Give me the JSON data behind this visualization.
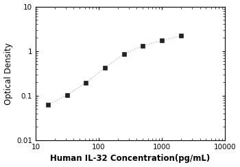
{
  "x_data": [
    15.625,
    31.25,
    62.5,
    125,
    250,
    500,
    1000,
    2000
  ],
  "y_data": [
    0.062,
    0.103,
    0.196,
    0.42,
    0.86,
    1.32,
    1.72,
    2.2
  ],
  "xlabel": "Human IL-32 Concentration(pg/mL)",
  "ylabel": "Optical Density",
  "xlim": [
    10,
    10000
  ],
  "ylim": [
    0.01,
    10
  ],
  "line_color": "#bbbbbb",
  "marker_color": "#222222",
  "marker_style": "s",
  "marker_size": 4,
  "line_width": 1.0,
  "xlabel_fontsize": 8.5,
  "ylabel_fontsize": 8.5,
  "tick_fontsize": 7.5,
  "background_color": "#ffffff",
  "x_ticks": [
    10,
    100,
    1000,
    10000
  ],
  "x_tick_labels": [
    "10",
    "100",
    "1000",
    "10000"
  ],
  "y_ticks": [
    0.01,
    0.1,
    1,
    10
  ],
  "y_tick_labels": [
    "0.01",
    "0.1",
    "1",
    "10"
  ]
}
